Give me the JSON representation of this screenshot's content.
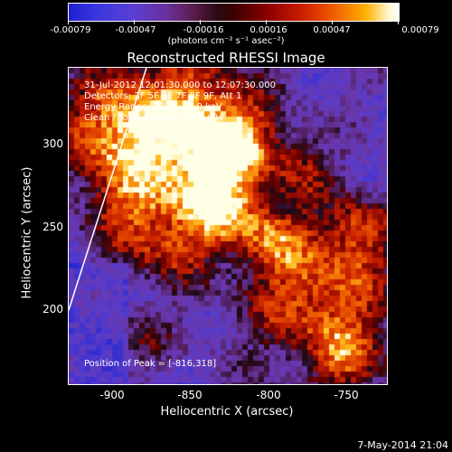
{
  "colorbar": {
    "tick_labels": [
      "-0.00079",
      "-0.00047",
      "-0.00016",
      "0.00016",
      "0.00047",
      "0.00079"
    ],
    "units": "(photons cm⁻² s⁻¹ asec⁻²)"
  },
  "title": "Reconstructed RHESSI Image",
  "info": {
    "time": "31-Jul-2012 12:01:30.000 to 12:07:30.000",
    "detectors": "Detectors: 3F 5F 6F 7F 8F 9F, Att 1",
    "energy": "Energy Range: 12.0 - 25.0 keV",
    "clean": "Clean   / Total counts: 1.54E+04",
    "peak": "Position of Peak = [-816,318]"
  },
  "axes": {
    "xlabel": "Heliocentric X (arcsec)",
    "ylabel": "Heliocentric Y (arcsec)",
    "xticks": [
      "-900",
      "-850",
      "-800",
      "-750"
    ],
    "yticks": [
      "300",
      "250",
      "200"
    ],
    "xlim": [
      -927,
      -727
    ],
    "ylim": [
      150,
      350
    ]
  },
  "timestamp": "7-May-2014 21:04",
  "colors": {
    "background": "#000000",
    "limb_line": "#ffffff"
  }
}
